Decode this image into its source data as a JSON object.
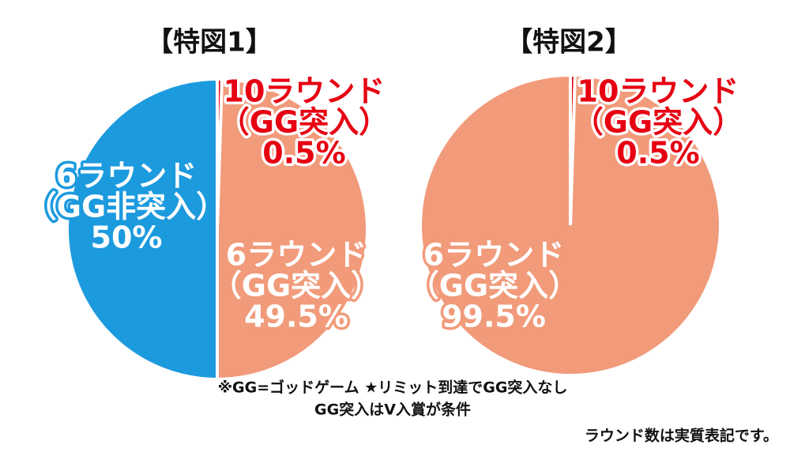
{
  "chart_data": [
    {
      "type": "pie",
      "title": "【特図1】",
      "categories": [
        [
          "10ラウンド",
          "（GG突入）"
        ],
        [
          "6ラウンド",
          "（GG突入）"
        ],
        [
          "6ラウンド",
          "（GG非突入）"
        ]
      ],
      "values": [
        0.5,
        49.5,
        50
      ],
      "value_labels": [
        "0.5%",
        "49.5%",
        "50%"
      ],
      "colors": [
        "#e60012",
        "#f19b7b",
        "#1c9ade"
      ]
    },
    {
      "type": "pie",
      "title": "【特図2】",
      "categories": [
        [
          "10ラウンド",
          "（GG突入）"
        ],
        [
          "6ラウンド",
          "（GG突入）"
        ]
      ],
      "values": [
        0.5,
        99.5
      ],
      "value_labels": [
        "0.5%",
        "99.5%"
      ],
      "colors": [
        "#e60012",
        "#f19b7b"
      ]
    }
  ],
  "notes": [
    "※GG=ゴッドゲーム ★リミット到達でGG突入なし",
    "GG突入はV入賞が条件",
    "ラウンド数は実質表記です。"
  ]
}
